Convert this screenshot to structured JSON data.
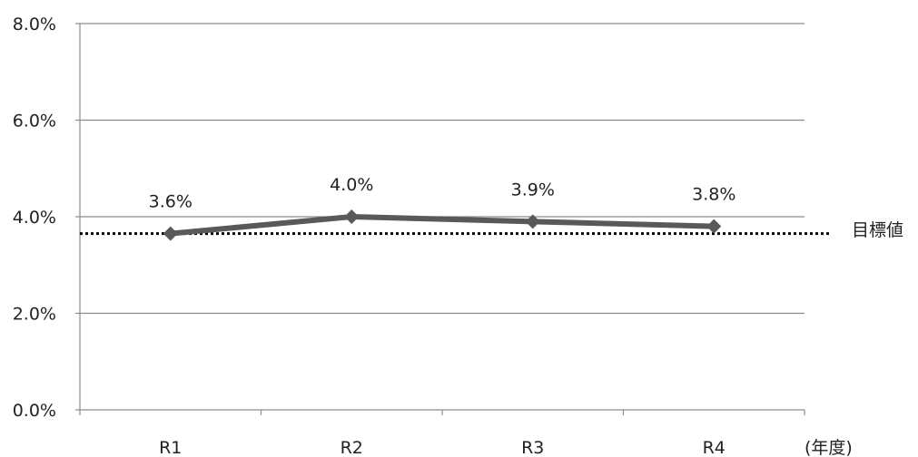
{
  "chart_data": {
    "type": "line",
    "categories": [
      "R1",
      "R2",
      "R3",
      "R4"
    ],
    "series": [
      {
        "values": [
          3.65,
          4.0,
          3.9,
          3.8
        ],
        "labels": [
          "3.6%",
          "4.0%",
          "3.9%",
          "3.8%"
        ]
      }
    ],
    "reference_line": {
      "value": 3.65,
      "label": "目標値",
      "style": "dotted"
    },
    "y_ticks": [
      0,
      2,
      4,
      6,
      8
    ],
    "y_tick_labels": [
      "0.0%",
      "2.0%",
      "4.0%",
      "6.0%",
      "8.0%"
    ],
    "ylim": [
      0,
      8
    ],
    "x_unit_label": "(年度)",
    "grid": true,
    "colors": {
      "line": "#595959",
      "marker": "#595959",
      "grid": "#8c8c8c",
      "reference": "#000000"
    }
  }
}
